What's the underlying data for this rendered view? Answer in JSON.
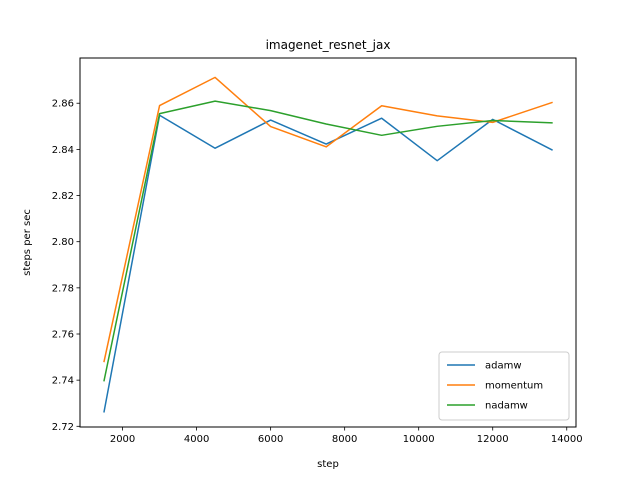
{
  "chart_data": {
    "type": "line",
    "title": "imagenet_resnet_jax",
    "xlabel": "step",
    "ylabel": "steps per sec",
    "xlim": [
      850,
      14250
    ],
    "ylim": [
      2.7197,
      2.8796
    ],
    "xticks": [
      2000,
      4000,
      6000,
      8000,
      10000,
      12000,
      14000
    ],
    "xtick_labels": [
      "2000",
      "4000",
      "6000",
      "8000",
      "10000",
      "12000",
      "14000"
    ],
    "yticks": [
      2.72,
      2.74,
      2.76,
      2.78,
      2.8,
      2.82,
      2.84,
      2.86
    ],
    "ytick_labels": [
      "2.72",
      "2.74",
      "2.76",
      "2.78",
      "2.80",
      "2.82",
      "2.84",
      "2.86"
    ],
    "grid": false,
    "legend_position": "lower right",
    "x": [
      1500,
      3000,
      4500,
      6000,
      7500,
      9000,
      10500,
      12000,
      13600
    ],
    "series": [
      {
        "name": "adamw",
        "color": "#1f77b4",
        "values": [
          2.7263,
          2.8548,
          2.8405,
          2.8527,
          2.8423,
          2.8535,
          2.8351,
          2.853,
          2.8398
        ]
      },
      {
        "name": "momentum",
        "color": "#ff7f0e",
        "values": [
          2.7481,
          2.859,
          2.8712,
          2.8499,
          2.8411,
          2.8589,
          2.8545,
          2.8517,
          2.8603
        ]
      },
      {
        "name": "nadamw",
        "color": "#2ca02c",
        "values": [
          2.7398,
          2.8555,
          2.8609,
          2.8568,
          2.851,
          2.8461,
          2.85,
          2.8525,
          2.8515
        ]
      }
    ]
  }
}
